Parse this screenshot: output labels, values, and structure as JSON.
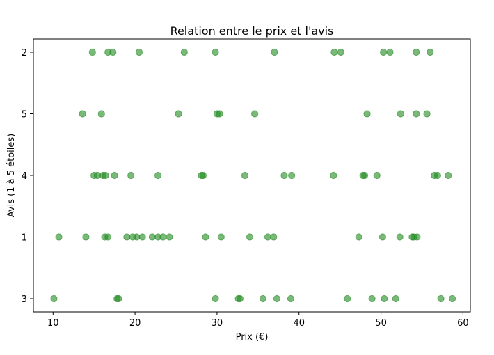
{
  "chart_data": {
    "type": "scatter",
    "title": "Relation entre le prix et l'avis",
    "xlabel": "Prix (€)",
    "ylabel": "Avis (1 à 5 étoiles)",
    "xlim": [
      7.6,
      60.9
    ],
    "x_ticks": [
      10,
      20,
      30,
      40,
      50,
      60
    ],
    "y_categories": [
      "3",
      "1",
      "4",
      "5",
      "2"
    ],
    "grid": false,
    "legend": "none",
    "marker_color": "#228B22",
    "marker_alpha": 0.6,
    "points": [
      {
        "x": 14.8,
        "y": "2"
      },
      {
        "x": 16.7,
        "y": "2"
      },
      {
        "x": 17.3,
        "y": "2"
      },
      {
        "x": 20.5,
        "y": "2"
      },
      {
        "x": 26.0,
        "y": "2"
      },
      {
        "x": 29.8,
        "y": "2"
      },
      {
        "x": 37.0,
        "y": "2"
      },
      {
        "x": 44.3,
        "y": "2"
      },
      {
        "x": 45.1,
        "y": "2"
      },
      {
        "x": 50.3,
        "y": "2"
      },
      {
        "x": 51.1,
        "y": "2"
      },
      {
        "x": 54.3,
        "y": "2"
      },
      {
        "x": 56.0,
        "y": "2"
      },
      {
        "x": 13.6,
        "y": "5"
      },
      {
        "x": 15.9,
        "y": "5"
      },
      {
        "x": 25.3,
        "y": "5"
      },
      {
        "x": 30.0,
        "y": "5"
      },
      {
        "x": 30.3,
        "y": "5"
      },
      {
        "x": 34.6,
        "y": "5"
      },
      {
        "x": 48.3,
        "y": "5"
      },
      {
        "x": 52.4,
        "y": "5"
      },
      {
        "x": 54.3,
        "y": "5"
      },
      {
        "x": 55.6,
        "y": "5"
      },
      {
        "x": 15.0,
        "y": "4"
      },
      {
        "x": 15.4,
        "y": "4"
      },
      {
        "x": 16.1,
        "y": "4"
      },
      {
        "x": 16.4,
        "y": "4"
      },
      {
        "x": 17.5,
        "y": "4"
      },
      {
        "x": 19.5,
        "y": "4"
      },
      {
        "x": 22.8,
        "y": "4"
      },
      {
        "x": 28.1,
        "y": "4"
      },
      {
        "x": 28.3,
        "y": "4"
      },
      {
        "x": 33.4,
        "y": "4"
      },
      {
        "x": 38.2,
        "y": "4"
      },
      {
        "x": 39.1,
        "y": "4"
      },
      {
        "x": 44.2,
        "y": "4"
      },
      {
        "x": 47.8,
        "y": "4"
      },
      {
        "x": 48.0,
        "y": "4"
      },
      {
        "x": 49.5,
        "y": "4"
      },
      {
        "x": 56.5,
        "y": "4"
      },
      {
        "x": 56.9,
        "y": "4"
      },
      {
        "x": 58.2,
        "y": "4"
      },
      {
        "x": 10.7,
        "y": "1"
      },
      {
        "x": 14.0,
        "y": "1"
      },
      {
        "x": 16.3,
        "y": "1"
      },
      {
        "x": 16.7,
        "y": "1"
      },
      {
        "x": 19.0,
        "y": "1"
      },
      {
        "x": 19.7,
        "y": "1"
      },
      {
        "x": 20.2,
        "y": "1"
      },
      {
        "x": 20.9,
        "y": "1"
      },
      {
        "x": 22.1,
        "y": "1"
      },
      {
        "x": 22.8,
        "y": "1"
      },
      {
        "x": 23.4,
        "y": "1"
      },
      {
        "x": 24.2,
        "y": "1"
      },
      {
        "x": 28.6,
        "y": "1"
      },
      {
        "x": 30.5,
        "y": "1"
      },
      {
        "x": 34.0,
        "y": "1"
      },
      {
        "x": 36.2,
        "y": "1"
      },
      {
        "x": 36.9,
        "y": "1"
      },
      {
        "x": 47.3,
        "y": "1"
      },
      {
        "x": 50.2,
        "y": "1"
      },
      {
        "x": 52.3,
        "y": "1"
      },
      {
        "x": 53.8,
        "y": "1"
      },
      {
        "x": 54.0,
        "y": "1"
      },
      {
        "x": 54.4,
        "y": "1"
      },
      {
        "x": 10.1,
        "y": "3"
      },
      {
        "x": 17.8,
        "y": "3"
      },
      {
        "x": 18.0,
        "y": "3"
      },
      {
        "x": 29.8,
        "y": "3"
      },
      {
        "x": 32.6,
        "y": "3"
      },
      {
        "x": 32.8,
        "y": "3"
      },
      {
        "x": 35.6,
        "y": "3"
      },
      {
        "x": 37.3,
        "y": "3"
      },
      {
        "x": 39.0,
        "y": "3"
      },
      {
        "x": 45.9,
        "y": "3"
      },
      {
        "x": 48.9,
        "y": "3"
      },
      {
        "x": 50.4,
        "y": "3"
      },
      {
        "x": 51.8,
        "y": "3"
      },
      {
        "x": 57.3,
        "y": "3"
      },
      {
        "x": 58.7,
        "y": "3"
      }
    ]
  }
}
